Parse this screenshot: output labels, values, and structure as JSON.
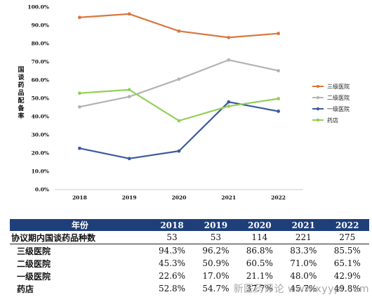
{
  "chart_data": {
    "type": "line",
    "ylabel": "国谈药品配备率",
    "categories": [
      "2018",
      "2019",
      "2020",
      "2021",
      "2022"
    ],
    "ylim": [
      0,
      100
    ],
    "ytick_labels": [
      "0.0%",
      "10.0%",
      "20.0%",
      "30.0%",
      "40.0%",
      "50.0%",
      "60.0%",
      "70.0%",
      "80.0%",
      "90.0%",
      "100.0%"
    ],
    "grid": false,
    "legend_position": "right",
    "series": [
      {
        "name": "三级医院",
        "color": "#d9773f",
        "values": [
          94.3,
          96.2,
          86.8,
          83.3,
          85.5
        ]
      },
      {
        "name": "二级医院",
        "color": "#b3b3b3",
        "values": [
          45.3,
          50.9,
          60.5,
          71.0,
          65.1
        ]
      },
      {
        "name": "一级医院",
        "color": "#3c5aa0",
        "values": [
          22.6,
          17.0,
          21.1,
          48.0,
          42.9
        ]
      },
      {
        "name": "药店",
        "color": "#92cf57",
        "values": [
          52.8,
          54.7,
          37.7,
          45.7,
          49.8
        ]
      }
    ]
  },
  "table": {
    "header": [
      "年份",
      "2018",
      "2019",
      "2020",
      "2021",
      "2022"
    ],
    "rows": [
      {
        "label": "协议期内国谈药品种数",
        "values": [
          "53",
          "53",
          "114",
          "221",
          "275"
        ]
      },
      {
        "label": "三级医院",
        "values": [
          "94.3%",
          "96.2%",
          "86.8%",
          "83.3%",
          "85.5%"
        ]
      },
      {
        "label": "二级医院",
        "values": [
          "45.3%",
          "50.9%",
          "60.5%",
          "71.0%",
          "65.1%"
        ]
      },
      {
        "label": "一级医院",
        "values": [
          "22.6%",
          "17.0%",
          "21.1%",
          "48.0%",
          "42.9%"
        ]
      },
      {
        "label": "药店",
        "values": [
          "52.8%",
          "54.7%",
          "37.7%",
          "45.7%",
          "49.8%"
        ]
      }
    ]
  },
  "watermark": "新医药评论 www.xyypl.com"
}
